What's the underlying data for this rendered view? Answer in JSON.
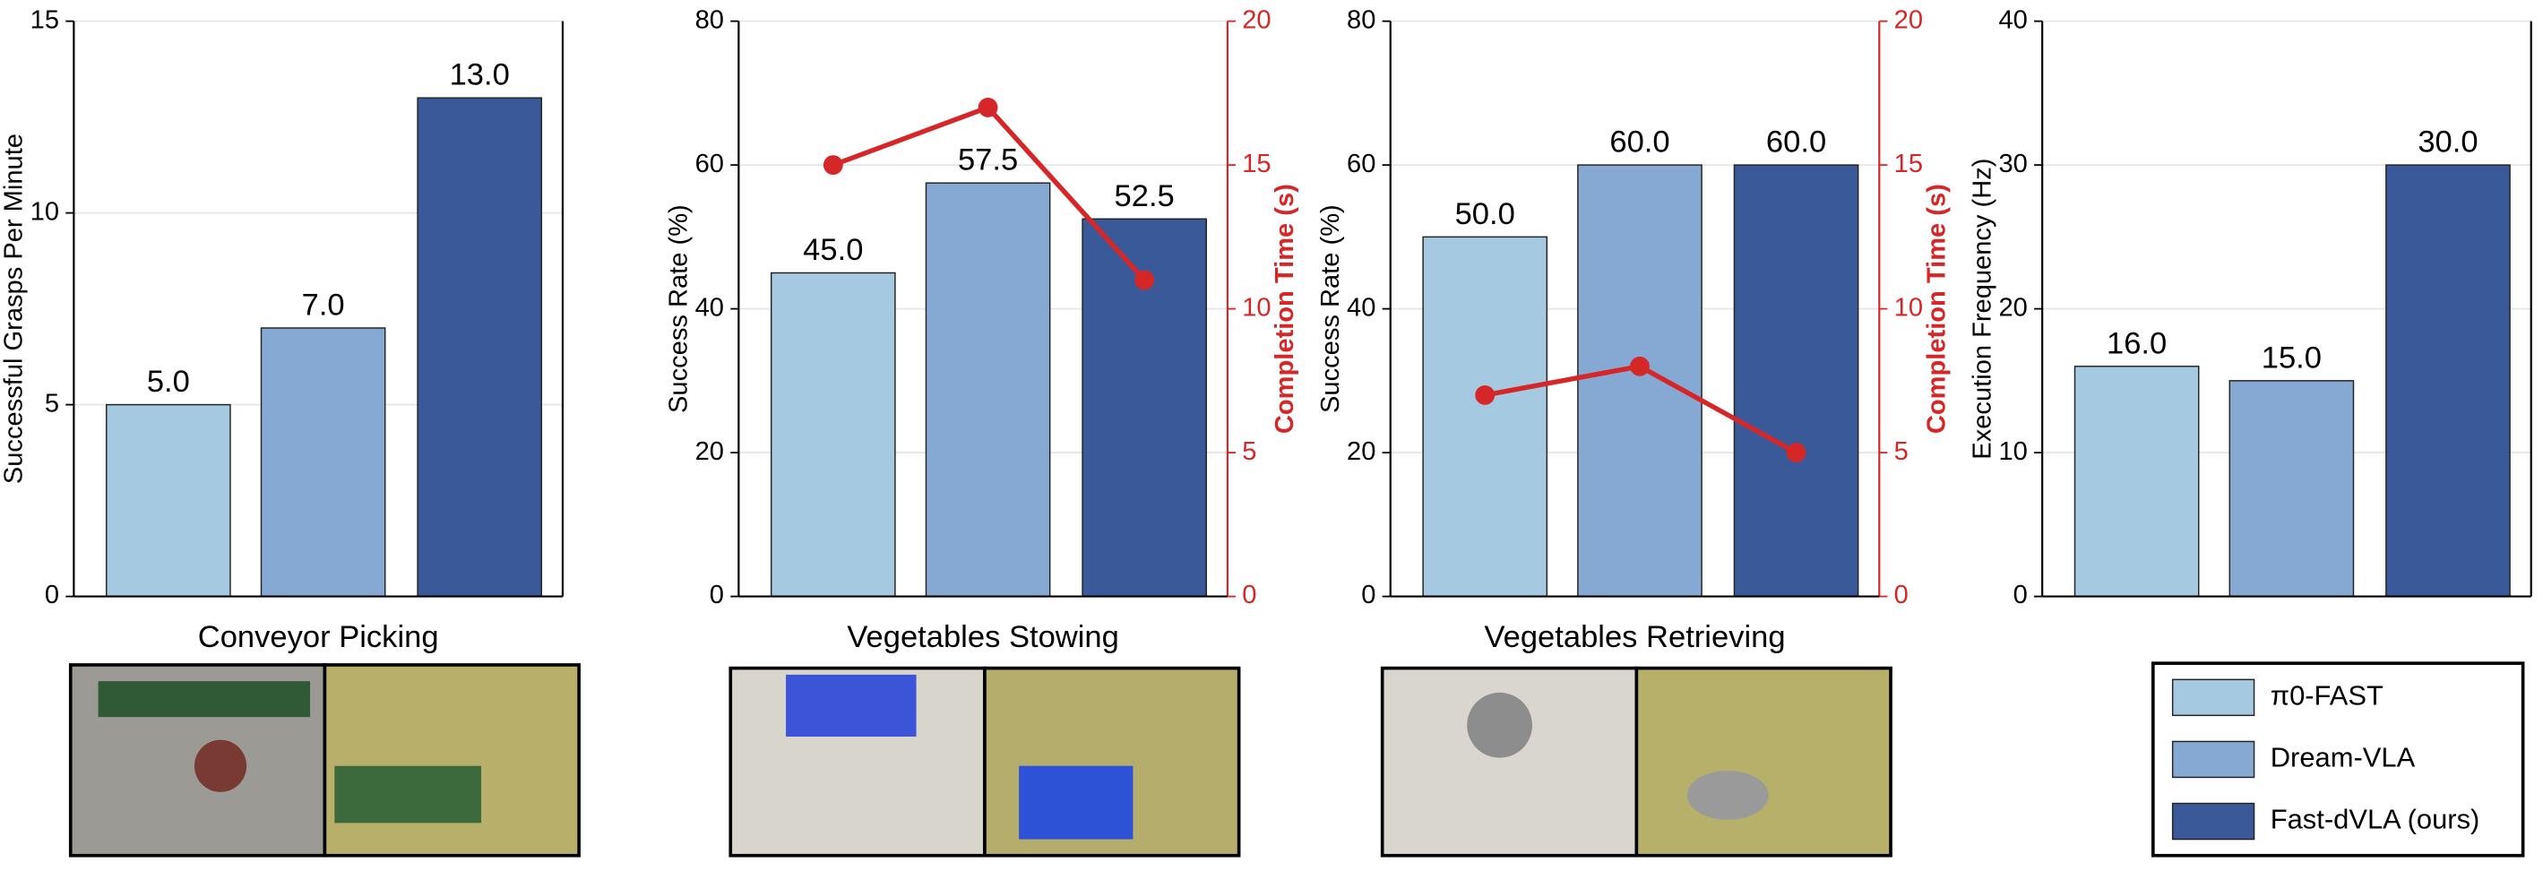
{
  "chart_data": [
    {
      "type": "bar",
      "xlabel": "Conveyor Picking",
      "ylabel": "Successful Grasps Per Minute",
      "values": [
        5,
        7,
        13
      ],
      "value_labels": [
        "5.0",
        "7.0",
        "13.0"
      ],
      "ylim": [
        0,
        15
      ],
      "yticks": [
        0,
        5,
        10,
        15
      ],
      "grid": true
    },
    {
      "type": "bar",
      "xlabel": "Vegetables Stowing",
      "ylabel": "Success Rate (%)",
      "values": [
        45,
        57.5,
        52.5
      ],
      "value_labels": [
        "45.0",
        "57.5",
        "52.5"
      ],
      "ylim": [
        0,
        80
      ],
      "yticks": [
        0,
        20,
        40,
        60,
        80
      ],
      "grid": true,
      "y2label": "Completion Time (s)",
      "line_values": [
        15,
        17,
        11
      ],
      "line_color": "#d62728",
      "y2lim": [
        0,
        20
      ],
      "y2ticks": [
        0,
        5,
        10,
        15,
        20
      ]
    },
    {
      "type": "bar",
      "xlabel": "Vegetables Retrieving",
      "ylabel": "Success Rate (%)",
      "values": [
        50,
        60,
        60
      ],
      "value_labels": [
        "50.0",
        "60.0",
        "60.0"
      ],
      "ylim": [
        0,
        80
      ],
      "yticks": [
        0,
        20,
        40,
        60,
        80
      ],
      "grid": true,
      "y2label": "Completion Time (s)",
      "line_values": [
        7,
        8,
        5
      ],
      "line_color": "#d62728",
      "y2lim": [
        0,
        20
      ],
      "y2ticks": [
        0,
        5,
        10,
        15,
        20
      ]
    },
    {
      "type": "bar",
      "ylabel": "Execution Frequency (Hz)",
      "values": [
        16,
        15,
        30
      ],
      "value_labels": [
        "16.0",
        "15.0",
        "30.0"
      ],
      "ylim": [
        0,
        40
      ],
      "yticks": [
        0,
        10,
        20,
        30,
        40
      ],
      "grid": true
    }
  ],
  "legend": {
    "position": "lower right",
    "entries": [
      "π0-FAST",
      "Dream-VLA",
      "Fast-dVLA (ours)"
    ],
    "colors": [
      "#a6c9e2",
      "#86a9d4",
      "#3a5998"
    ]
  }
}
